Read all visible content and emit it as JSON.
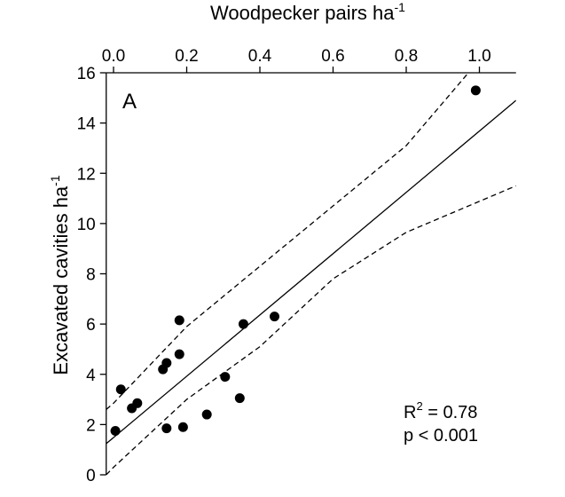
{
  "chart_data": {
    "type": "scatter",
    "x_label": {
      "text": "Woodpecker pairs ha",
      "sup": "-1"
    },
    "y_label": {
      "text": "Excavated cavities ha",
      "sup": "-1"
    },
    "panel_label": "A",
    "annotation": {
      "r": "R",
      "sup": "2",
      "r_rest": " = 0.78",
      "p": "p < 0.001"
    },
    "xlim": [
      -0.02,
      1.1
    ],
    "ylim": [
      0,
      16
    ],
    "xticks": [
      {
        "value": 0,
        "label": "0.0"
      },
      0.2,
      0.4,
      0.6,
      0.8,
      {
        "value": 1,
        "label": "1.0"
      }
    ],
    "yticks": [
      0,
      2,
      4,
      6,
      8,
      10,
      12,
      14,
      16
    ],
    "series": [
      {
        "mode": "markers",
        "color": "#000000",
        "x": [
          0.005,
          0.02,
          0.05,
          0.065,
          0.135,
          0.145,
          0.18,
          0.18,
          0.145,
          0.19,
          0.255,
          0.305,
          0.345,
          0.355,
          0.44,
          0.99
        ],
        "values": [
          1.75,
          3.4,
          2.65,
          2.85,
          4.2,
          4.45,
          4.8,
          6.15,
          1.85,
          1.9,
          2.4,
          3.9,
          3.05,
          6.0,
          6.3,
          15.3
        ]
      },
      {
        "mode": "line",
        "dash": false,
        "color": "#000000",
        "x": [
          -0.02,
          1.1
        ],
        "values": [
          1.24,
          14.9
        ]
      },
      {
        "mode": "line",
        "dash": true,
        "color": "#000000",
        "x": [
          -0.02,
          0,
          0.2,
          0.4,
          0.6,
          0.8,
          0.97
        ],
        "values": [
          2.6,
          2.85,
          5.9,
          8.3,
          10.7,
          13.1,
          16
        ]
      },
      {
        "mode": "line",
        "dash": true,
        "color": "#000000",
        "x": [
          -0.02,
          0,
          0.2,
          0.4,
          0.6,
          0.8,
          1.1
        ],
        "values": [
          0,
          0.3,
          3.0,
          5.1,
          7.8,
          9.65,
          11.5
        ]
      }
    ]
  }
}
